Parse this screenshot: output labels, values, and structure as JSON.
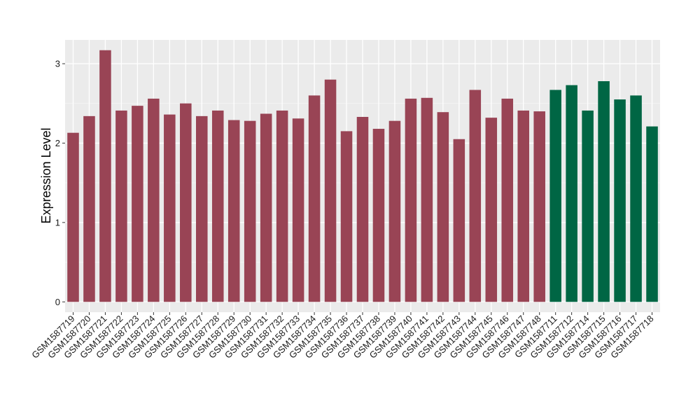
{
  "chart_data": {
    "type": "bar",
    "title": "",
    "xlabel": "",
    "ylabel": "Expression Level",
    "ylim": [
      -0.13,
      3.3
    ],
    "yticks": [
      0,
      1,
      2,
      3
    ],
    "grid": true,
    "legend": "none",
    "panel_background": "#ebebeb",
    "categories": [
      "GSM1587719",
      "GSM1587720",
      "GSM1587721",
      "GSM1587722",
      "GSM1587723",
      "GSM1587724",
      "GSM1587725",
      "GSM1587726",
      "GSM1587727",
      "GSM1587728",
      "GSM1587729",
      "GSM1587730",
      "GSM1587731",
      "GSM1587732",
      "GSM1587733",
      "GSM1587734",
      "GSM1587735",
      "GSM1587736",
      "GSM1587737",
      "GSM1587738",
      "GSM1587739",
      "GSM1587740",
      "GSM1587741",
      "GSM1587742",
      "GSM1587743",
      "GSM1587744",
      "GSM1587745",
      "GSM1587746",
      "GSM1587747",
      "GSM1587748",
      "GSM1587711",
      "GSM1587712",
      "GSM1587714",
      "GSM1587715",
      "GSM1587716",
      "GSM1587717",
      "GSM1587718"
    ],
    "values": [
      2.13,
      2.34,
      3.17,
      2.41,
      2.47,
      2.56,
      2.36,
      2.5,
      2.34,
      2.41,
      2.29,
      2.28,
      2.37,
      2.41,
      2.31,
      2.6,
      2.8,
      2.15,
      2.33,
      2.18,
      2.28,
      2.56,
      2.57,
      2.39,
      2.05,
      2.67,
      2.32,
      2.56,
      2.41,
      2.4,
      2.67,
      2.73,
      2.41,
      2.78,
      2.55,
      2.6,
      2.21
    ],
    "colors": [
      "#994455",
      "#994455",
      "#994455",
      "#994455",
      "#994455",
      "#994455",
      "#994455",
      "#994455",
      "#994455",
      "#994455",
      "#994455",
      "#994455",
      "#994455",
      "#994455",
      "#994455",
      "#994455",
      "#994455",
      "#994455",
      "#994455",
      "#994455",
      "#994455",
      "#994455",
      "#994455",
      "#994455",
      "#994455",
      "#994455",
      "#994455",
      "#994455",
      "#994455",
      "#994455",
      "#006644",
      "#006644",
      "#006644",
      "#006644",
      "#006644",
      "#006644",
      "#006644"
    ]
  }
}
